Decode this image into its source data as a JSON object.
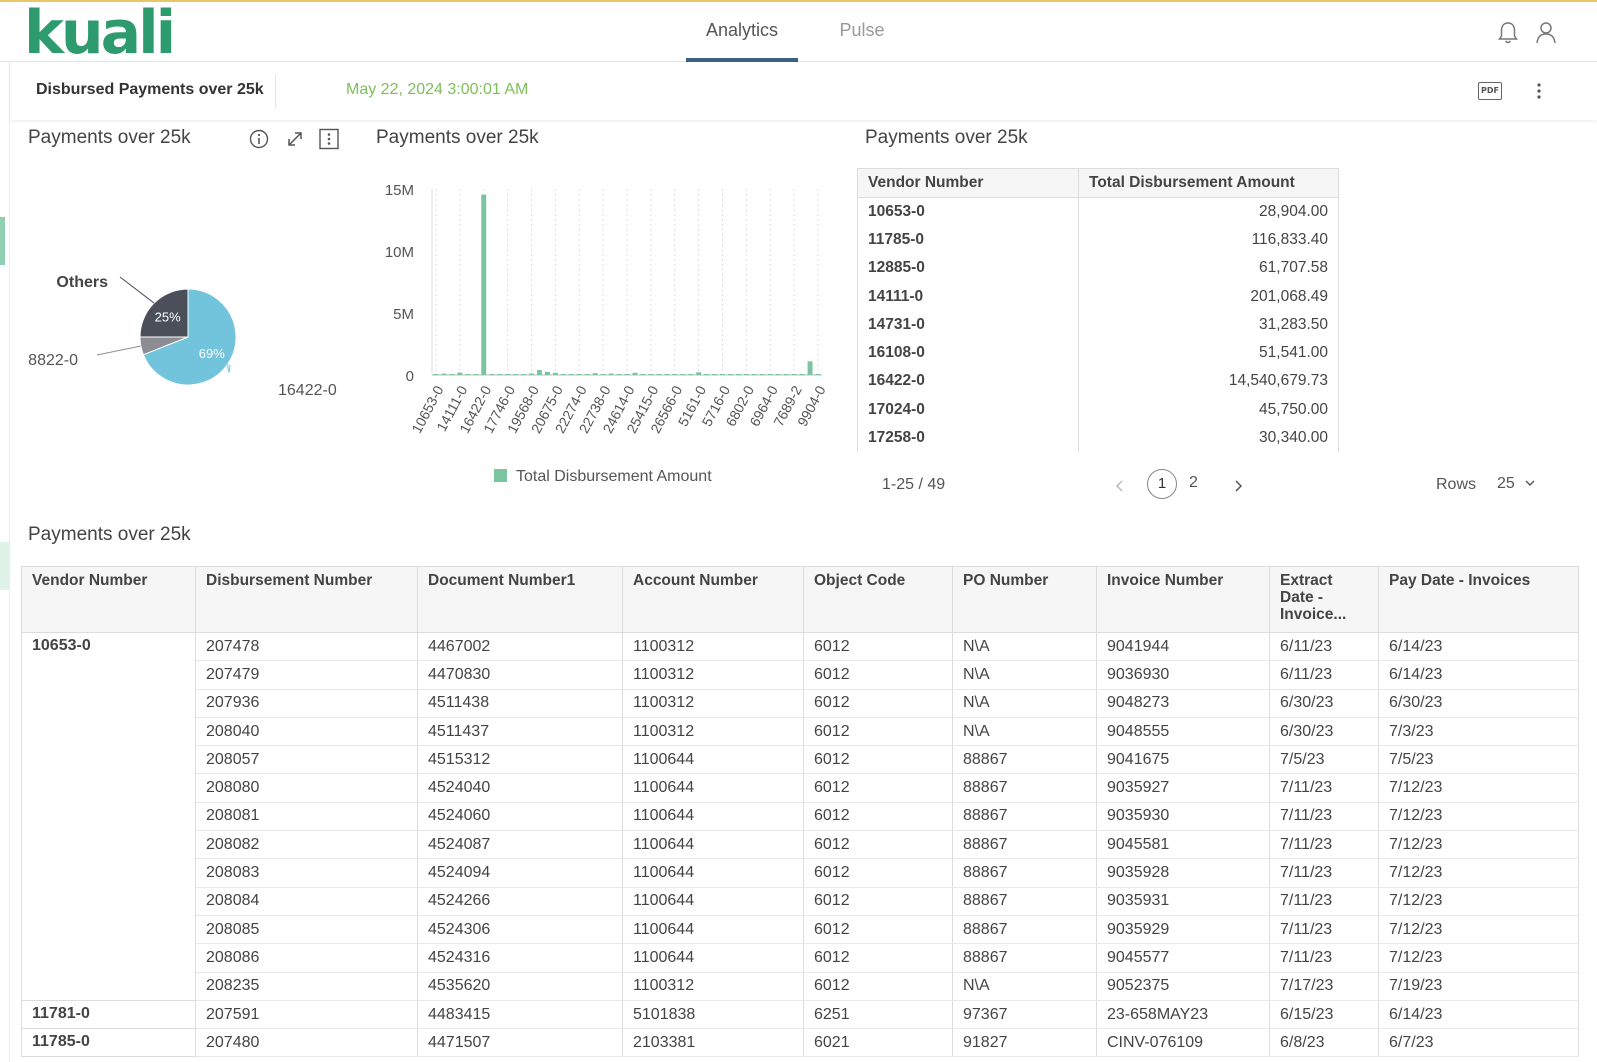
{
  "app": {
    "logo": "kuali",
    "brand_color": "#2e9b6e",
    "accent_color": "#3b5f85"
  },
  "nav": {
    "tabs": [
      {
        "label": "Analytics",
        "active": true
      },
      {
        "label": "Pulse",
        "active": false
      }
    ]
  },
  "header_icons": [
    "bell-icon",
    "user-icon"
  ],
  "dashboard": {
    "title": "Disbursed Payments over 25k",
    "timestamp": "May 22, 2024 3:00:01 AM",
    "timestamp_color": "#7dbf5a",
    "actions": {
      "pdf_label": "PDF",
      "more_icon": "vertical-dots-icon"
    }
  },
  "pie_widget": {
    "title": "Payments over 25k",
    "icons": [
      "info-icon",
      "expand-icon",
      "more-icon"
    ],
    "chart_data": {
      "type": "pie",
      "slices": [
        {
          "label": "16422-0",
          "value": 69,
          "display": "69%",
          "color": "#72c3dc"
        },
        {
          "label": "8822-0",
          "value": 6,
          "display": "",
          "color": "#8b8d92"
        },
        {
          "label": "Others",
          "value": 25,
          "display": "25%",
          "color": "#4a4f5a"
        }
      ]
    }
  },
  "bar_widget": {
    "title": "Payments over 25k",
    "chart_data": {
      "type": "bar",
      "color": "#7ac4a0",
      "legend": [
        "Total Disbursement Amount"
      ],
      "legend_position": "bottom",
      "ylim": [
        0,
        15000000
      ],
      "yticks": [
        "0",
        "5M",
        "10M",
        "15M"
      ],
      "xtick_labels": [
        "10653-0",
        "14111-0",
        "16422-0",
        "17746-0",
        "19568-0",
        "20675-0",
        "22274-0",
        "22738-0",
        "24614-0",
        "25415-0",
        "26566-0",
        "5161-0",
        "5716-0",
        "6802-0",
        "6964-0",
        "7689-2",
        "9904-0"
      ],
      "grid": true,
      "values": [
        28904,
        116833,
        61708,
        201068,
        31284,
        51541,
        14540680,
        45750,
        30340,
        40000,
        35000,
        60000,
        120000,
        400000,
        250000,
        180000,
        50000,
        30000,
        30000,
        45000,
        150000,
        40000,
        120000,
        40000,
        30000,
        180000,
        50000,
        35000,
        30000,
        40000,
        60000,
        30000,
        50000,
        220000,
        30000,
        40000,
        35000,
        30000,
        45000,
        50000,
        30000,
        60000,
        35000,
        40000,
        30000,
        50000,
        35000,
        1100000,
        40000
      ]
    }
  },
  "vendor_table": {
    "title": "Payments over 25k",
    "columns": [
      "Vendor Number",
      "Total Disbursement Amount"
    ],
    "rows": [
      [
        "10653-0",
        "28,904.00"
      ],
      [
        "11785-0",
        "116,833.40"
      ],
      [
        "12885-0",
        "61,707.58"
      ],
      [
        "14111-0",
        "201,068.49"
      ],
      [
        "14731-0",
        "31,283.50"
      ],
      [
        "16108-0",
        "51,541.00"
      ],
      [
        "16422-0",
        "14,540,679.73"
      ],
      [
        "17024-0",
        "45,750.00"
      ],
      [
        "17258-0",
        "30,340.00"
      ]
    ],
    "pager": {
      "range": "1-25 / 49",
      "pages": [
        "1",
        "2"
      ],
      "current": "1",
      "rows_label": "Rows",
      "rows_value": "25"
    }
  },
  "detail_table": {
    "title": "Payments over 25k",
    "columns": [
      "Vendor Number",
      "Disbursement Number",
      "Document Number1",
      "Account Number",
      "Object Code",
      "PO Number",
      "Invoice Number",
      "Extract Date - Invoice...",
      "Pay Date - Invoices"
    ],
    "groups": [
      {
        "vendor": "10653-0",
        "rows": [
          [
            "207478",
            "4467002",
            "1100312",
            "6012",
            "N\\A",
            "9041944",
            "6/11/23",
            "6/14/23"
          ],
          [
            "207479",
            "4470830",
            "1100312",
            "6012",
            "N\\A",
            "9036930",
            "6/11/23",
            "6/14/23"
          ],
          [
            "207936",
            "4511438",
            "1100312",
            "6012",
            "N\\A",
            "9048273",
            "6/30/23",
            "6/30/23"
          ],
          [
            "208040",
            "4511437",
            "1100312",
            "6012",
            "N\\A",
            "9048555",
            "6/30/23",
            "7/3/23"
          ],
          [
            "208057",
            "4515312",
            "1100644",
            "6012",
            "88867",
            "9041675",
            "7/5/23",
            "7/5/23"
          ],
          [
            "208080",
            "4524040",
            "1100644",
            "6012",
            "88867",
            "9035927",
            "7/11/23",
            "7/12/23"
          ],
          [
            "208081",
            "4524060",
            "1100644",
            "6012",
            "88867",
            "9035930",
            "7/11/23",
            "7/12/23"
          ],
          [
            "208082",
            "4524087",
            "1100644",
            "6012",
            "88867",
            "9045581",
            "7/11/23",
            "7/12/23"
          ],
          [
            "208083",
            "4524094",
            "1100644",
            "6012",
            "88867",
            "9035928",
            "7/11/23",
            "7/12/23"
          ],
          [
            "208084",
            "4524266",
            "1100644",
            "6012",
            "88867",
            "9035931",
            "7/11/23",
            "7/12/23"
          ],
          [
            "208085",
            "4524306",
            "1100644",
            "6012",
            "88867",
            "9035929",
            "7/11/23",
            "7/12/23"
          ],
          [
            "208086",
            "4524316",
            "1100644",
            "6012",
            "88867",
            "9045577",
            "7/11/23",
            "7/12/23"
          ],
          [
            "208235",
            "4535620",
            "1100312",
            "6012",
            "N\\A",
            "9052375",
            "7/17/23",
            "7/19/23"
          ]
        ]
      },
      {
        "vendor": "11781-0",
        "rows": [
          [
            "207591",
            "4483415",
            "5101838",
            "6251",
            "97367",
            "23-658MAY23",
            "6/15/23",
            "6/14/23"
          ]
        ]
      },
      {
        "vendor": "11785-0",
        "rows": [
          [
            "207480",
            "4471507",
            "2103381",
            "6021",
            "91827",
            "CINV-076109",
            "6/8/23",
            "6/7/23"
          ]
        ]
      }
    ]
  }
}
